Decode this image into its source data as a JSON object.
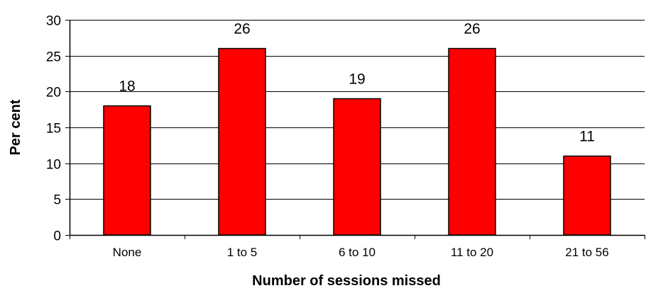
{
  "chart_data": {
    "type": "bar",
    "title": "",
    "xlabel": "Number of sessions missed",
    "ylabel": "Per cent",
    "categories": [
      "None",
      "1 to 5",
      "6 to 10",
      "11 to 20",
      "21 to 56"
    ],
    "values": [
      18,
      26,
      19,
      26,
      11
    ],
    "data_labels": [
      "18",
      "26",
      "19",
      "26",
      "11"
    ],
    "ylim": [
      0,
      30
    ],
    "yticks": [
      0,
      5,
      10,
      15,
      20,
      25,
      30
    ],
    "ytick_labels": [
      "0",
      "5",
      "10",
      "15",
      "20",
      "25",
      "30"
    ],
    "grid": true,
    "legend": "none",
    "bar_color": "#ff0000",
    "bar_edge_color": "#000000"
  }
}
